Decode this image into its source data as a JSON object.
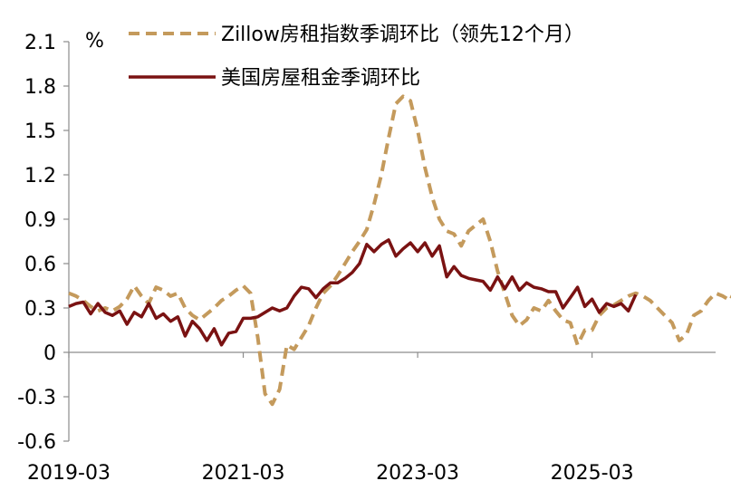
{
  "chart_data": {
    "type": "line",
    "title": "",
    "xlabel": "",
    "ylabel": "",
    "unit": "%",
    "ylim": [
      -0.6,
      2.1
    ],
    "yticks": [
      "2.1",
      "1.8",
      "1.5",
      "1.2",
      "0.9",
      "0.6",
      "0.3",
      "0",
      "-0.3",
      "-0.6"
    ],
    "ytick_values": [
      2.1,
      1.8,
      1.5,
      1.2,
      0.9,
      0.6,
      0.3,
      0,
      -0.3,
      -0.6
    ],
    "xlim": [
      "2019-03",
      "2026-08"
    ],
    "xticks": [
      "2019-03",
      "2021-03",
      "2023-03",
      "2025-03"
    ],
    "legend_position": "top",
    "grid": false,
    "series": [
      {
        "name": "Zillow房租指数季调环比（领先12个月）",
        "color": "#C49A5C",
        "style": "dashed",
        "start": "2019-03",
        "values": [
          0.4,
          0.38,
          0.35,
          0.31,
          0.28,
          0.3,
          0.28,
          0.31,
          0.36,
          0.45,
          0.38,
          0.33,
          0.44,
          0.42,
          0.38,
          0.4,
          0.3,
          0.25,
          0.22,
          0.26,
          0.3,
          0.35,
          0.38,
          0.42,
          0.45,
          0.4,
          0.1,
          -0.28,
          -0.35,
          -0.25,
          0.05,
          0.02,
          0.1,
          0.18,
          0.3,
          0.4,
          0.45,
          0.52,
          0.6,
          0.68,
          0.75,
          0.83,
          1.0,
          1.2,
          1.45,
          1.68,
          1.73,
          1.7,
          1.5,
          1.25,
          1.05,
          0.9,
          0.82,
          0.8,
          0.72,
          0.82,
          0.86,
          0.9,
          0.75,
          0.55,
          0.4,
          0.25,
          0.18,
          0.22,
          0.3,
          0.28,
          0.35,
          0.28,
          0.22,
          0.2,
          0.05,
          0.15,
          0.15,
          0.25,
          0.3,
          0.32,
          0.35,
          0.38,
          0.4,
          0.38,
          0.35,
          0.3,
          0.25,
          0.2,
          0.08,
          0.12,
          0.25,
          0.28,
          0.35,
          0.4,
          0.38,
          0.35,
          0.45,
          0.37
        ]
      },
      {
        "name": "美国房屋租金季调环比",
        "color": "#7A1212",
        "style": "solid",
        "start": "2019-03",
        "values": [
          0.31,
          0.33,
          0.34,
          0.26,
          0.33,
          0.27,
          0.25,
          0.28,
          0.19,
          0.27,
          0.24,
          0.33,
          0.23,
          0.26,
          0.21,
          0.24,
          0.11,
          0.21,
          0.16,
          0.08,
          0.16,
          0.05,
          0.13,
          0.14,
          0.23,
          0.23,
          0.24,
          0.27,
          0.3,
          0.28,
          0.3,
          0.38,
          0.44,
          0.43,
          0.37,
          0.43,
          0.47,
          0.47,
          0.5,
          0.54,
          0.6,
          0.73,
          0.68,
          0.73,
          0.76,
          0.65,
          0.7,
          0.74,
          0.68,
          0.74,
          0.65,
          0.72,
          0.51,
          0.58,
          0.52,
          0.5,
          0.49,
          0.48,
          0.42,
          0.51,
          0.43,
          0.51,
          0.42,
          0.47,
          0.44,
          0.43,
          0.41,
          0.41,
          0.3,
          0.37,
          0.44,
          0.31,
          0.36,
          0.27,
          0.33,
          0.31,
          0.33,
          0.28,
          0.39
        ]
      }
    ]
  }
}
